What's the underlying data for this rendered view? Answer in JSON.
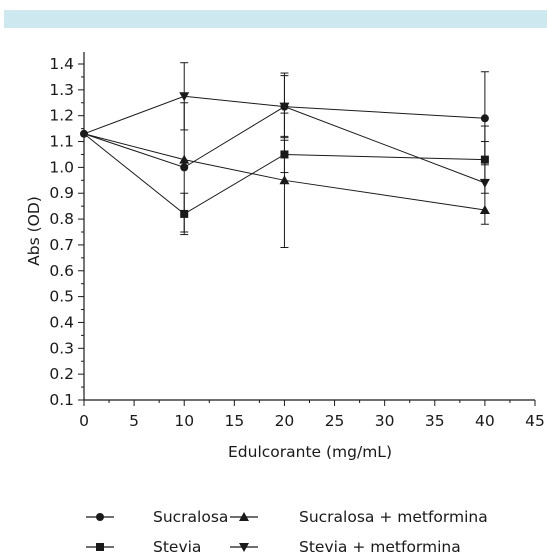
{
  "chart_data": {
    "type": "line",
    "xlabel": "Edulcorante (mg/mL)",
    "ylabel": "Abs (OD)",
    "xlim": [
      0,
      45
    ],
    "ylim": [
      0.1,
      1.4
    ],
    "xticks": [
      0,
      5,
      10,
      15,
      20,
      25,
      30,
      35,
      40,
      45
    ],
    "yticks": [
      0.1,
      0.2,
      0.3,
      0.4,
      0.5,
      0.6,
      0.7,
      0.8,
      0.9,
      1.0,
      1.1,
      1.2,
      1.3,
      1.4
    ],
    "ytick_labels": [
      "0.1",
      "0.2",
      "0.3",
      "0.4",
      "0.5",
      "0.6",
      "0.7",
      "0.8",
      "0.9",
      "1.0",
      "1.1",
      "1.2",
      "1.3",
      "1.4"
    ],
    "x": [
      0,
      10,
      20,
      40
    ],
    "grid": false,
    "legend_position": "bottom",
    "colors": {
      "series": "#1a1a1a",
      "band": "#cde9ef"
    },
    "series": [
      {
        "name": "Sucralosa",
        "marker": "circle",
        "values": [
          1.13,
          1.0,
          1.235,
          1.19
        ],
        "errors": [
          0,
          0.25,
          0.13,
          0.18
        ]
      },
      {
        "name": "Stevia",
        "marker": "square",
        "values": [
          1.13,
          0.82,
          1.05,
          1.03
        ],
        "errors": [
          0,
          0.08,
          0.07,
          0.13
        ]
      },
      {
        "name": "Sucralosa + metformina",
        "marker": "triangle-up",
        "values": [
          1.13,
          1.03,
          0.95,
          0.835
        ],
        "errors": [
          0,
          0.0,
          0.26,
          0.0
        ]
      },
      {
        "name": "Stevia + metformina",
        "marker": "triangle-down",
        "values": [
          1.13,
          1.275,
          1.235,
          0.94
        ],
        "errors": [
          0,
          0.13,
          0.12,
          0.16
        ]
      }
    ]
  }
}
